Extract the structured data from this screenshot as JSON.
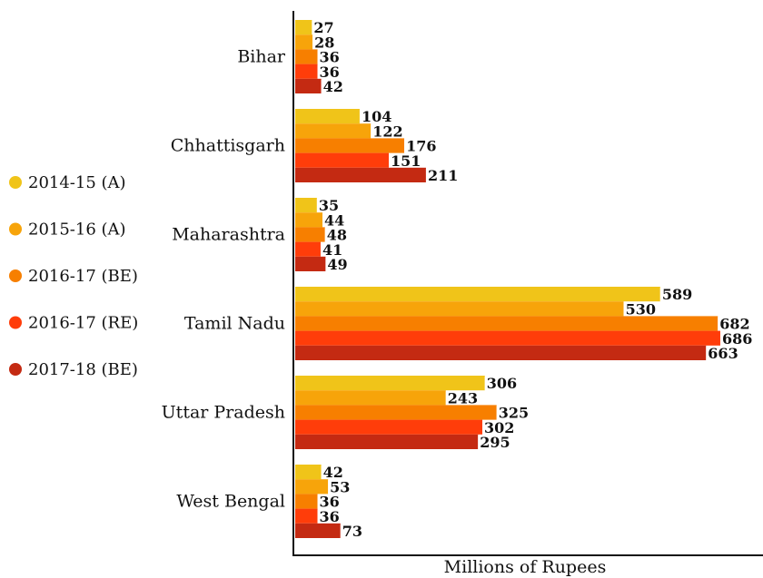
{
  "chart_data": {
    "type": "bar",
    "orientation": "horizontal",
    "categories": [
      "Bihar",
      "Chhattisgarh",
      "Maharashtra",
      "Tamil Nadu",
      "Uttar Pradesh",
      "West Bengal"
    ],
    "series": [
      {
        "name": "2014-15 (A)",
        "color": "#F0C419",
        "values": [
          27,
          104,
          35,
          589,
          306,
          42
        ]
      },
      {
        "name": "2015-16 (A)",
        "color": "#F7A40A",
        "values": [
          28,
          122,
          44,
          530,
          243,
          53
        ]
      },
      {
        "name": "2016-17 (BE)",
        "color": "#F77F00",
        "values": [
          36,
          176,
          48,
          682,
          325,
          36
        ]
      },
      {
        "name": "2016-17 (RE)",
        "color": "#FF3D0A",
        "values": [
          36,
          151,
          41,
          686,
          302,
          36
        ]
      },
      {
        "name": "2017-18 (BE)",
        "color": "#C42A12",
        "values": [
          42,
          211,
          49,
          663,
          295,
          73
        ]
      }
    ],
    "xlabel": "Millions of Rupees",
    "ylabel": "",
    "xlim": [
      0,
      700
    ],
    "grid": false,
    "legend_position": "left"
  }
}
